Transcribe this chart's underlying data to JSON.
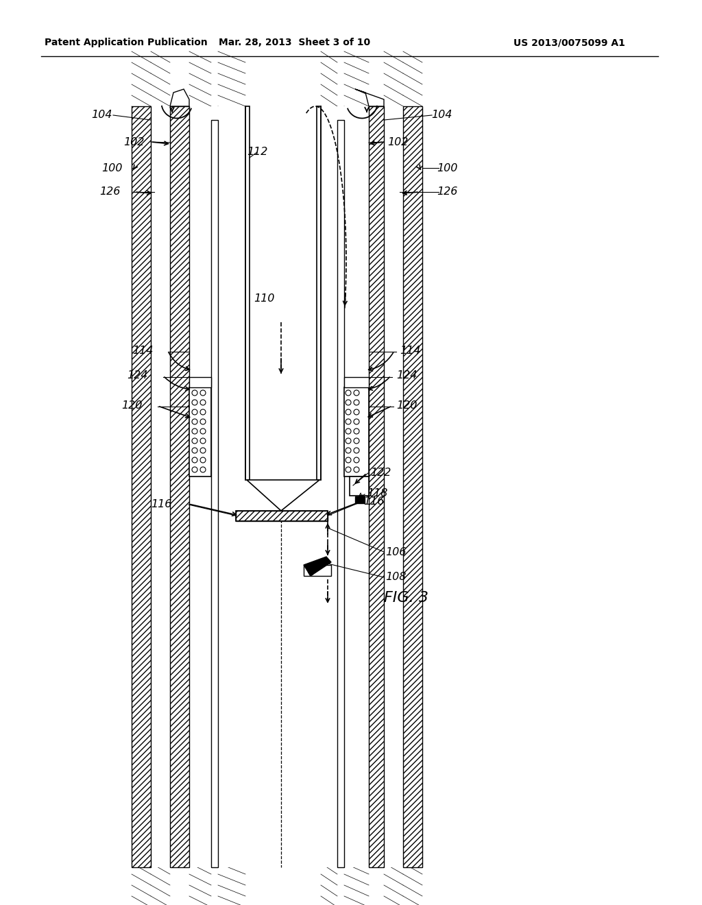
{
  "header_left": "Patent Application Publication",
  "header_mid": "Mar. 28, 2013  Sheet 3 of 10",
  "header_right": "US 2013/0075099 A1",
  "fig_label": "FIG. 3",
  "background": "#ffffff",
  "line_color": "#000000"
}
